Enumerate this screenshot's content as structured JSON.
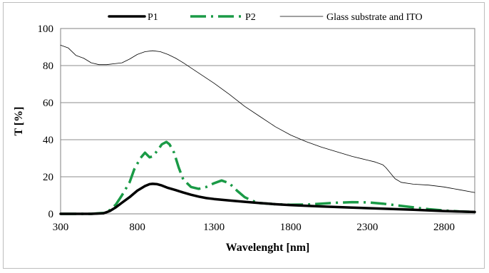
{
  "chart_data": {
    "type": "line",
    "xlabel": "Wavelenght  [nm]",
    "ylabel": "T [%]",
    "xlim": [
      300,
      3000
    ],
    "ylim": [
      0,
      100
    ],
    "xticks": [
      "300",
      "800",
      "1300",
      "1800",
      "2300",
      "2800"
    ],
    "yticks": [
      "0",
      "20",
      "40",
      "60",
      "80",
      "100"
    ],
    "grid": "horizontal",
    "legend_position": "top",
    "series": [
      {
        "name": "P1",
        "color": "#000000",
        "style": "solid-thick",
        "x": [
          300,
          400,
          500,
          580,
          620,
          660,
          700,
          750,
          800,
          850,
          880,
          900,
          930,
          960,
          1000,
          1050,
          1100,
          1150,
          1200,
          1250,
          1300,
          1350,
          1400,
          1500,
          1600,
          1700,
          1800,
          2000,
          2200,
          2400,
          2600,
          2800,
          3000
        ],
        "y": [
          0,
          0,
          0,
          0.3,
          1.5,
          3.5,
          6,
          9,
          12.5,
          15,
          16,
          16.2,
          16,
          15.3,
          14,
          12.8,
          11.5,
          10.3,
          9.3,
          8.5,
          8,
          7.6,
          7.2,
          6.5,
          5.8,
          5.2,
          4.7,
          4,
          3.4,
          2.8,
          2.2,
          1.5,
          1
        ]
      },
      {
        "name": "P2",
        "color": "#1a9a46",
        "style": "dash-dot",
        "x": [
          300,
          400,
          500,
          580,
          620,
          660,
          700,
          750,
          780,
          820,
          850,
          880,
          900,
          930,
          960,
          990,
          1010,
          1040,
          1070,
          1100,
          1150,
          1200,
          1250,
          1300,
          1350,
          1400,
          1450,
          1500,
          1550,
          1600,
          1700,
          1800,
          1900,
          2000,
          2100,
          2200,
          2300,
          2400,
          2500,
          2600,
          2700,
          2800,
          2900,
          3000
        ],
        "y": [
          0,
          0,
          0,
          0.5,
          2,
          5,
          10,
          17,
          24,
          30,
          33,
          30.5,
          31,
          34,
          37.5,
          38.8,
          37.5,
          33,
          25,
          18.5,
          14.5,
          13.5,
          14.5,
          16.5,
          18,
          16.5,
          12.5,
          9,
          7,
          5.8,
          5.2,
          4.9,
          5,
          5.5,
          6,
          6.3,
          6.2,
          5.5,
          4.5,
          3.5,
          2.5,
          1.8,
          1.3,
          1
        ]
      },
      {
        "name": "Glass substrate and ITO",
        "color": "#000000",
        "style": "thin",
        "x": [
          300,
          350,
          400,
          450,
          500,
          550,
          600,
          650,
          700,
          750,
          800,
          850,
          900,
          950,
          1000,
          1050,
          1100,
          1200,
          1300,
          1400,
          1500,
          1600,
          1700,
          1800,
          1900,
          2000,
          2100,
          2200,
          2300,
          2350,
          2400,
          2420,
          2450,
          2480,
          2520,
          2600,
          2700,
          2800,
          2900,
          3000
        ],
        "y": [
          91,
          89.5,
          85.5,
          84,
          81.5,
          80.5,
          80.5,
          81,
          81.5,
          83.5,
          86,
          87.5,
          88,
          87.5,
          86,
          84,
          81.5,
          76,
          70.5,
          64.5,
          58,
          52.5,
          47,
          42.5,
          39,
          36,
          33.5,
          31,
          29,
          28,
          26.5,
          25,
          22,
          19,
          17,
          16,
          15.5,
          14.5,
          13,
          11.5
        ]
      }
    ]
  }
}
